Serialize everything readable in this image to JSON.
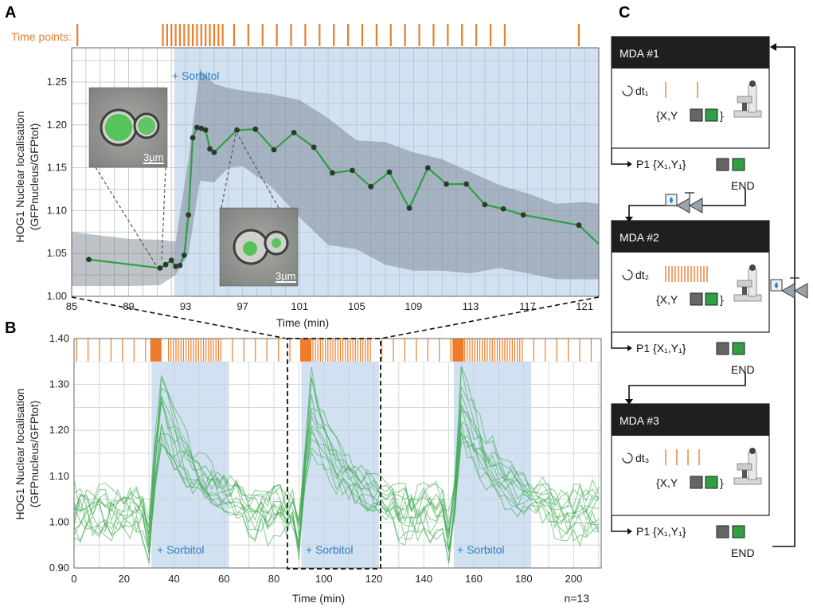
{
  "panel_a": {
    "label": "A",
    "time_points_label": "Time points:",
    "ylabel_line1": "HOG1 Nuclear localisation",
    "ylabel_line2": "(GFPnucleus/GFPtot)",
    "xlabel": "Time (min)",
    "sorbitol_label": "+ Sorbitol",
    "scale_bar_1": "3µm",
    "scale_bar_2": "3µm",
    "xticks": [
      "85",
      "89",
      "93",
      "97",
      "101",
      "105",
      "109",
      "113",
      "117",
      "121"
    ],
    "yticks": [
      "1.00",
      "1.05",
      "1.10",
      "1.15",
      "1.20",
      "1.25"
    ]
  },
  "panel_b": {
    "label": "B",
    "ylabel_line1": "HOG1 Nuclear localisation",
    "ylabel_line2": "(GFPnucleus/GFPtot)",
    "xlabel": "Time (min)",
    "n_label": "n=13",
    "sorbitol_labels": [
      "+ Sorbitol",
      "+ Sorbitol",
      "+ Sorbitol"
    ],
    "xticks": [
      "0",
      "20",
      "40",
      "60",
      "80",
      "100",
      "120",
      "140",
      "160",
      "180",
      "200"
    ],
    "yticks": [
      "0.90",
      "1.00",
      "1.10",
      "1.20",
      "1.30",
      "1.40"
    ]
  },
  "panel_c": {
    "label": "C",
    "blocks": [
      {
        "title": "MDA #1",
        "dt": "dt₁",
        "xy": "{X,Y",
        "close": "}",
        "p1": "P1 {X₁,Y₁}",
        "end": "END"
      },
      {
        "title": "MDA #2",
        "dt": "dt₂",
        "xy": "{X,Y",
        "close": "}",
        "p1": "P1 {X₁,Y₁}",
        "end": "END"
      },
      {
        "title": "MDA #3",
        "dt": "dt₃",
        "xy": "{X,Y",
        "close": "}",
        "p1": "P1 {X₁,Y₁}",
        "end": "END"
      }
    ]
  },
  "colors": {
    "green": "#2ea043",
    "light_green": "#7cc47c",
    "orange": "#ee7d2b",
    "blue_shade": "#c9dcf0",
    "grey_band": "#8d9aa5",
    "dark_header": "#1f1f1f"
  },
  "chart_data": [
    {
      "type": "line",
      "panel": "A",
      "xlabel": "Time (min)",
      "ylabel": "HOG1 Nuclear localisation (GFPnucleus/GFPtot)",
      "xlim": [
        85,
        122
      ],
      "ylim": [
        1.0,
        1.29
      ],
      "xticks": [
        85,
        89,
        93,
        97,
        101,
        105,
        109,
        113,
        117,
        121
      ],
      "yticks": [
        1.0,
        1.05,
        1.1,
        1.15,
        1.2,
        1.25
      ],
      "sorbitol_from": 92.2,
      "time_points": [
        85.4,
        91.4,
        91.7,
        92.0,
        92.3,
        92.6,
        92.9,
        93.2,
        93.5,
        93.8,
        94.1,
        94.4,
        94.7,
        95.0,
        95.3,
        95.6,
        96.4,
        97.4,
        98.4,
        99.4,
        100.4,
        101.4,
        102.4,
        103.4,
        104.4,
        105.4,
        106.4,
        107.4,
        108.4,
        109.4,
        110.4,
        111.4,
        112.4,
        113.4,
        114.4,
        115.4,
        120.6
      ],
      "series": [
        {
          "x": [
            86.2,
            91.2,
            91.6,
            92.0,
            92.3,
            92.6,
            92.9,
            93.2,
            93.5,
            93.8,
            94.1,
            94.4,
            94.7,
            95.0,
            96.6,
            97.9,
            99.2,
            100.6,
            102.0,
            103.3,
            104.7,
            106.0,
            107.3,
            108.7,
            110.0,
            111.3,
            112.7,
            114.0,
            115.3,
            116.7,
            120.6,
            122.0
          ],
          "y": [
            1.043,
            1.033,
            1.037,
            1.042,
            1.035,
            1.036,
            1.048,
            1.095,
            1.185,
            1.197,
            1.196,
            1.194,
            1.172,
            1.168,
            1.194,
            1.195,
            1.171,
            1.191,
            1.174,
            1.144,
            1.147,
            1.128,
            1.145,
            1.103,
            1.15,
            1.131,
            1.131,
            1.107,
            1.102,
            1.095,
            1.083,
            1.061
          ]
        }
      ],
      "band": {
        "x": [
          85,
          89,
          91.2,
          92.3,
          93.2,
          94.0,
          95.0,
          96.0,
          97.0,
          99.0,
          101.0,
          103.0,
          105.0,
          107.0,
          109.0,
          111.0,
          113.0,
          115.0,
          117.0,
          119.0,
          121.0,
          122.0
        ],
        "upper": [
          1.075,
          1.067,
          1.066,
          1.064,
          1.16,
          1.265,
          1.248,
          1.243,
          1.24,
          1.236,
          1.229,
          1.208,
          1.182,
          1.18,
          1.168,
          1.16,
          1.145,
          1.13,
          1.12,
          1.108,
          1.11,
          1.108
        ],
        "lower": [
          1.012,
          1.012,
          1.013,
          1.025,
          1.05,
          1.135,
          1.133,
          1.15,
          1.152,
          1.128,
          1.092,
          1.06,
          1.055,
          1.037,
          1.03,
          1.03,
          1.027,
          1.033,
          1.027,
          1.02,
          1.02,
          1.02
        ]
      }
    },
    {
      "type": "line",
      "panel": "B",
      "xlabel": "Time (min)",
      "ylabel": "HOG1 Nuclear localisation (GFPnucleus/GFPtot)",
      "xlim": [
        0,
        211
      ],
      "ylim": [
        0.9,
        1.4
      ],
      "xticks": [
        0,
        20,
        40,
        60,
        80,
        100,
        120,
        140,
        160,
        180,
        200
      ],
      "yticks": [
        0.9,
        1.0,
        1.1,
        1.2,
        1.3,
        1.4
      ],
      "pulses": [
        [
          31,
          62
        ],
        [
          91,
          122
        ],
        [
          152,
          183
        ]
      ],
      "n": 13
    }
  ]
}
